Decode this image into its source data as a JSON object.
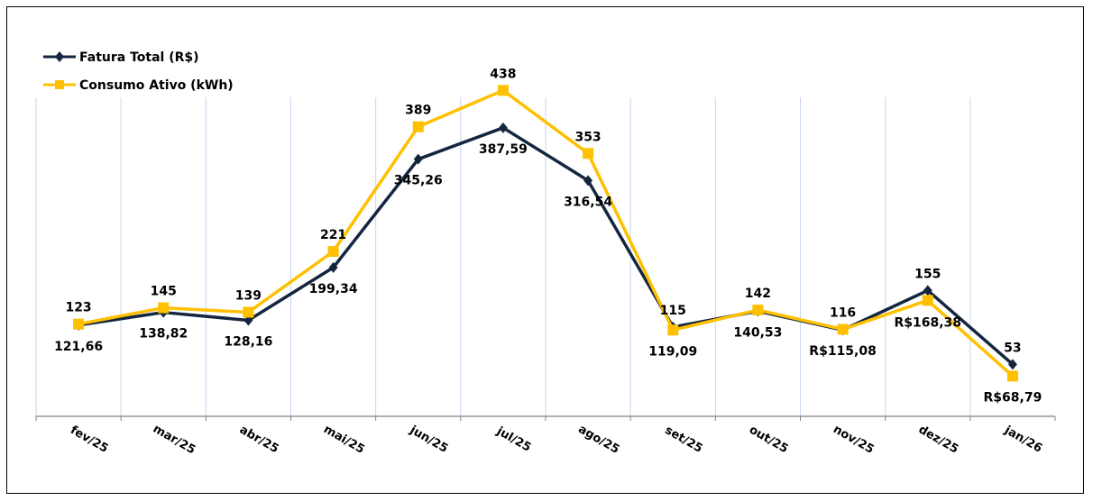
{
  "chart_data": {
    "type": "line",
    "title": "",
    "xlabel": "",
    "ylabel": "",
    "ylim": [
      0,
      560
    ],
    "grid": "vertical",
    "legend_position": "top-left",
    "categories": [
      "fev/25",
      "mar/25",
      "abr/25",
      "mai/25",
      "jun/25",
      "jul/25",
      "ago/25",
      "set/25",
      "out/25",
      "nov/25",
      "dez/25",
      "jan/26"
    ],
    "series": [
      {
        "name": "Fatura Total (R$)",
        "color": "#14263F",
        "marker": "diamond",
        "values": [
          121.66,
          138.82,
          128.16,
          199.34,
          345.26,
          387.59,
          316.54,
          119.09,
          140.53,
          115.08,
          168.38,
          68.79
        ],
        "labels": [
          "121,66",
          "138,82",
          "128,16",
          "199,34",
          "345,26",
          "387,59",
          "316,54",
          "119,09",
          "140,53",
          "R$115,08",
          "R$168,38",
          "R$68,79"
        ]
      },
      {
        "name": "Consumo Ativo (kWh)",
        "color": "#FFC000",
        "marker": "square",
        "values": [
          123,
          145,
          139,
          221,
          389,
          438,
          353,
          115,
          142,
          116,
          155,
          53
        ],
        "labels": [
          "123",
          "145",
          "139",
          "221",
          "389",
          "438",
          "353",
          "115",
          "142",
          "116",
          "155",
          "53"
        ]
      }
    ]
  }
}
